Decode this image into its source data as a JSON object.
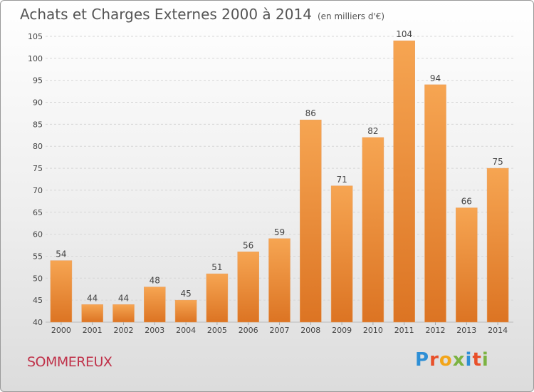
{
  "header": {
    "title": "Achats et Charges Externes 2000 à 2014",
    "unit": "(en milliers d'€)"
  },
  "footer": {
    "place": "SOMMEREUX",
    "brand": "Proxiti",
    "brand_colors": [
      "#2e8fd6",
      "#e8502a",
      "#f2a51a",
      "#7cb342",
      "#2e8fd6",
      "#e8502a",
      "#7cb342"
    ]
  },
  "colors": {
    "bar_light": "#f6a552",
    "bar_dark": "#dc7423",
    "grid": "#d6d6d6",
    "axis_text": "#444444",
    "title": "#555555",
    "place": "#c0324a"
  },
  "chart_data": {
    "type": "bar",
    "categories": [
      "2000",
      "2001",
      "2002",
      "2003",
      "2004",
      "2005",
      "2006",
      "2007",
      "2008",
      "2009",
      "2010",
      "2011",
      "2012",
      "2013",
      "2014"
    ],
    "values": [
      54,
      44,
      44,
      48,
      45,
      51,
      56,
      59,
      86,
      71,
      82,
      104,
      94,
      66,
      75
    ],
    "ylim": [
      40,
      105
    ],
    "yticks": [
      40,
      45,
      50,
      55,
      60,
      65,
      70,
      75,
      80,
      85,
      90,
      95,
      100,
      105
    ],
    "grid": "dashed horizontal",
    "data_labels": true
  }
}
